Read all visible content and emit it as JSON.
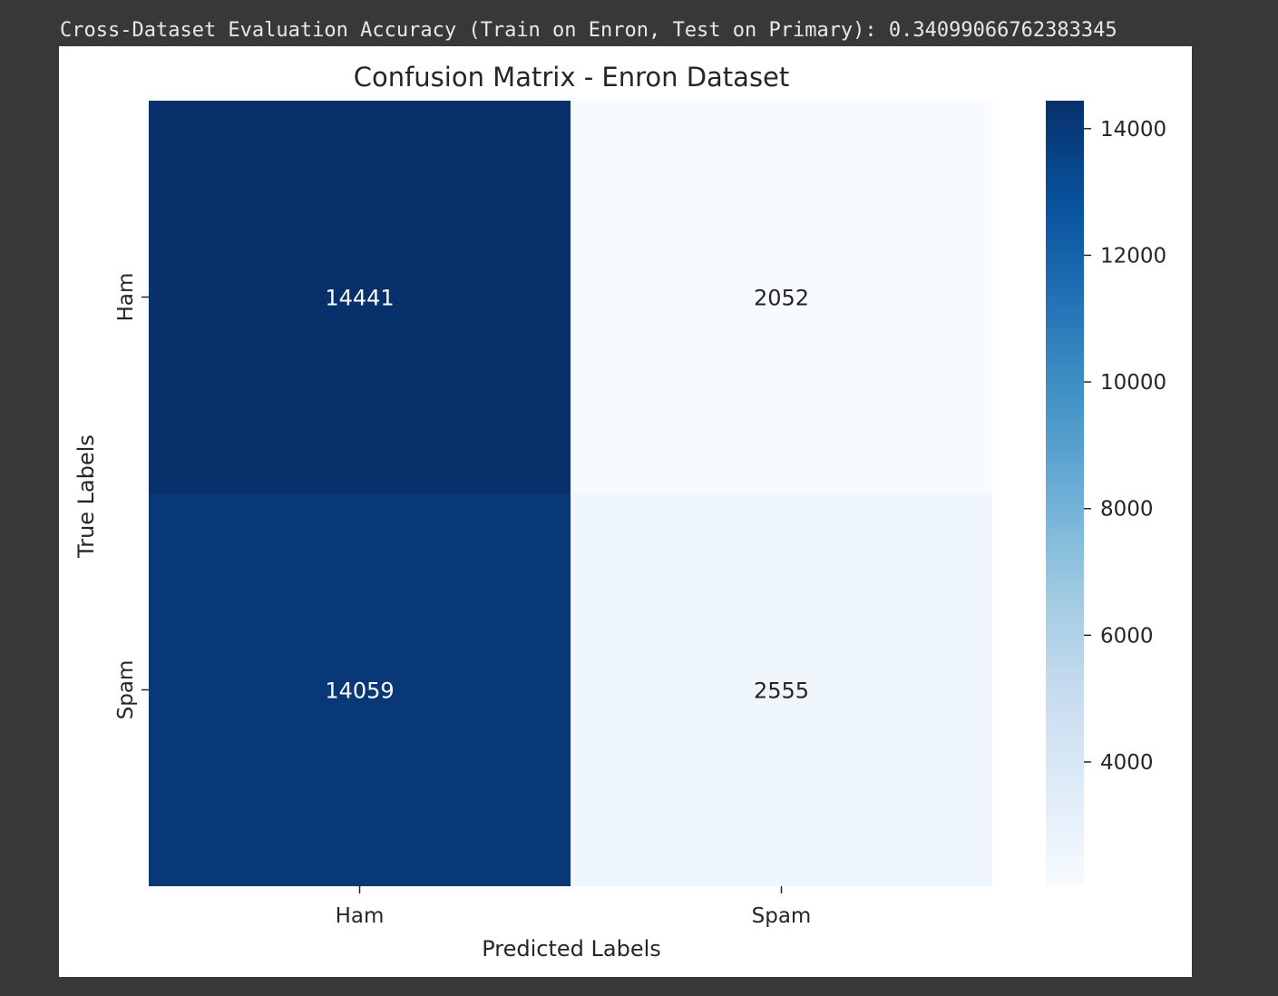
{
  "output_text": "Cross-Dataset Evaluation Accuracy (Train on Enron, Test on Primary): 0.34099066762383345",
  "chart_data": {
    "type": "heatmap",
    "title": "Confusion Matrix - Enron Dataset",
    "xlabel": "Predicted Labels",
    "ylabel": "True Labels",
    "x_categories": [
      "Ham",
      "Spam"
    ],
    "y_categories": [
      "Ham",
      "Spam"
    ],
    "values": [
      [
        14441,
        2052
      ],
      [
        14059,
        2555
      ]
    ],
    "colormap": "Blues",
    "colorbar": {
      "range": [
        2052,
        14441
      ],
      "ticks": [
        4000,
        6000,
        8000,
        10000,
        12000,
        14000
      ],
      "tick_labels": [
        "4000",
        "6000",
        "8000",
        "10000",
        "12000",
        "14000"
      ]
    },
    "colors": [
      "#f7fbff",
      "#deebf7",
      "#c6dbef",
      "#9ecae1",
      "#6baed6",
      "#4292c6",
      "#2171b5",
      "#08519c",
      "#08306b"
    ]
  }
}
